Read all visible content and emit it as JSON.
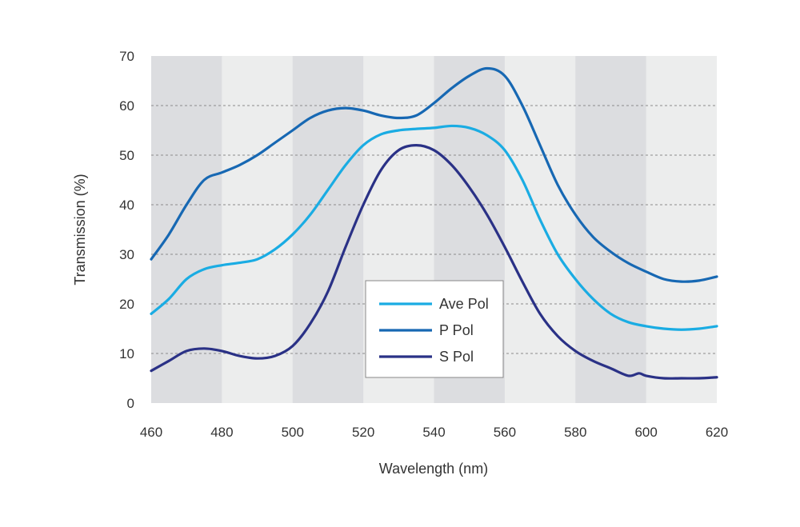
{
  "chart_data": {
    "type": "line",
    "title": "",
    "xlabel": "Wavelength (nm)",
    "ylabel": "Transmission (%)",
    "xlim": [
      460,
      620
    ],
    "ylim": [
      0,
      70
    ],
    "x_ticks": [
      460,
      480,
      500,
      520,
      540,
      560,
      580,
      600,
      620
    ],
    "y_ticks": [
      0,
      10,
      20,
      30,
      40,
      50,
      60,
      70
    ],
    "grid": "horizontal-dashed",
    "background_bands": [
      [
        460,
        480
      ],
      [
        500,
        520
      ],
      [
        540,
        560
      ],
      [
        580,
        600
      ]
    ],
    "legend_placement": "center",
    "series": [
      {
        "name": "Ave Pol",
        "color": "#1aace3",
        "points": [
          [
            460,
            18
          ],
          [
            465,
            21
          ],
          [
            470,
            25
          ],
          [
            475,
            27
          ],
          [
            480,
            27.8
          ],
          [
            485,
            28.3
          ],
          [
            490,
            29
          ],
          [
            495,
            31
          ],
          [
            500,
            34
          ],
          [
            505,
            38
          ],
          [
            510,
            43
          ],
          [
            515,
            48
          ],
          [
            520,
            52
          ],
          [
            525,
            54.2
          ],
          [
            530,
            55
          ],
          [
            535,
            55.3
          ],
          [
            540,
            55.5
          ],
          [
            545,
            55.9
          ],
          [
            550,
            55.5
          ],
          [
            555,
            54
          ],
          [
            560,
            51
          ],
          [
            565,
            45
          ],
          [
            570,
            37
          ],
          [
            575,
            30
          ],
          [
            580,
            25
          ],
          [
            585,
            21
          ],
          [
            590,
            18
          ],
          [
            595,
            16.3
          ],
          [
            600,
            15.5
          ],
          [
            605,
            15
          ],
          [
            610,
            14.8
          ],
          [
            615,
            15
          ],
          [
            620,
            15.5
          ]
        ]
      },
      {
        "name": "P Pol",
        "color": "#1768b3",
        "points": [
          [
            460,
            29
          ],
          [
            465,
            34
          ],
          [
            470,
            40
          ],
          [
            475,
            45
          ],
          [
            480,
            46.5
          ],
          [
            485,
            48
          ],
          [
            490,
            50
          ],
          [
            495,
            52.5
          ],
          [
            500,
            55
          ],
          [
            505,
            57.5
          ],
          [
            510,
            59
          ],
          [
            515,
            59.5
          ],
          [
            520,
            59
          ],
          [
            525,
            58
          ],
          [
            530,
            57.5
          ],
          [
            535,
            58
          ],
          [
            540,
            60.5
          ],
          [
            545,
            63.5
          ],
          [
            550,
            66
          ],
          [
            555,
            67.5
          ],
          [
            560,
            66
          ],
          [
            565,
            60
          ],
          [
            570,
            52
          ],
          [
            575,
            44
          ],
          [
            580,
            38
          ],
          [
            585,
            33.5
          ],
          [
            590,
            30.5
          ],
          [
            595,
            28.2
          ],
          [
            600,
            26.5
          ],
          [
            605,
            25
          ],
          [
            610,
            24.5
          ],
          [
            615,
            24.7
          ],
          [
            620,
            25.5
          ]
        ]
      },
      {
        "name": "S Pol",
        "color": "#2a3186",
        "points": [
          [
            460,
            6.5
          ],
          [
            465,
            8.5
          ],
          [
            470,
            10.5
          ],
          [
            475,
            11
          ],
          [
            480,
            10.5
          ],
          [
            485,
            9.5
          ],
          [
            490,
            9
          ],
          [
            495,
            9.5
          ],
          [
            500,
            11.5
          ],
          [
            505,
            16
          ],
          [
            510,
            22.5
          ],
          [
            515,
            31.5
          ],
          [
            520,
            40
          ],
          [
            525,
            47
          ],
          [
            530,
            51
          ],
          [
            535,
            52
          ],
          [
            540,
            51
          ],
          [
            545,
            48
          ],
          [
            550,
            43.5
          ],
          [
            555,
            38
          ],
          [
            560,
            31.5
          ],
          [
            565,
            24.5
          ],
          [
            570,
            18
          ],
          [
            575,
            13.5
          ],
          [
            580,
            10.5
          ],
          [
            585,
            8.5
          ],
          [
            590,
            7
          ],
          [
            595,
            5.5
          ],
          [
            598,
            6
          ],
          [
            600,
            5.5
          ],
          [
            605,
            5
          ],
          [
            610,
            5
          ],
          [
            615,
            5
          ],
          [
            620,
            5.2
          ]
        ]
      }
    ]
  }
}
